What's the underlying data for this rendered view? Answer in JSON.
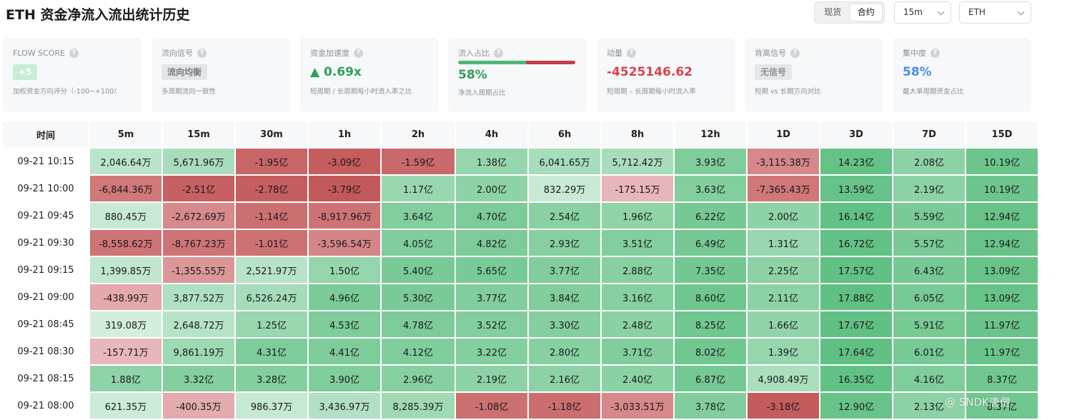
{
  "header": {
    "title": "ETH 资金净流入流出统计历史",
    "mode_options": [
      "现货",
      "合约"
    ],
    "mode_selected": "合约",
    "interval_value": "15m",
    "symbol_value": "ETH"
  },
  "cards": [
    {
      "label": "FLOW SCORE",
      "value": "+5",
      "value_style": "pill",
      "value_color": "#ffffff",
      "value_bg": "#c9ecd6",
      "desc": "加权资金方向评分（-100~+100）"
    },
    {
      "label": "流向信号",
      "value": "流向均衡",
      "value_style": "pill",
      "value_color": "#777b82",
      "value_bg": "#e3e5e8",
      "desc": "多周期流向一致性"
    },
    {
      "label": "资金加速度",
      "value": "▲ 0.69x",
      "value_style": "text",
      "value_color": "#2e9e5b",
      "desc": "短周期 / 长周期每小时流入率之比"
    },
    {
      "label": "流入占比",
      "value": "58%",
      "value_style": "text",
      "value_color": "#2e9e5b",
      "desc": "净流入周期占比",
      "ratio_in": 0.58
    },
    {
      "label": "动量",
      "value": "-4525146.62",
      "value_style": "text",
      "value_color": "#d9434c",
      "desc": "短周期 – 长周期每小时流入率"
    },
    {
      "label": "背离信号",
      "value": "无信号",
      "value_style": "pill",
      "value_color": "#8a8f98",
      "value_bg": "#e5e7ea",
      "desc": "短期 vs 长期方向对比"
    },
    {
      "label": "集中度",
      "value": "58%",
      "value_style": "text",
      "value_color": "#4a8fe0",
      "desc": "最大单周期资金占比"
    }
  ],
  "table": {
    "columns": [
      "时间",
      "5m",
      "15m",
      "30m",
      "1h",
      "2h",
      "4h",
      "6h",
      "8h",
      "12h",
      "1D",
      "3D",
      "7D",
      "15D"
    ],
    "rows": [
      {
        "time": "09-21 10:15",
        "cells": [
          "2,046.64万",
          "5,671.96万",
          "-1.95亿",
          "-3.09亿",
          "-1.59亿",
          "1.38亿",
          "6,041.65万",
          "5,712.42万",
          "3.93亿",
          "-3,115.38万",
          "14.23亿",
          "2.08亿",
          "10.19亿"
        ]
      },
      {
        "time": "09-21 10:00",
        "cells": [
          "-6,844.36万",
          "-2.51亿",
          "-2.78亿",
          "-3.79亿",
          "1.17亿",
          "2.00亿",
          "832.29万",
          "-175.15万",
          "3.63亿",
          "-7,365.43万",
          "13.59亿",
          "2.19亿",
          "10.19亿"
        ]
      },
      {
        "time": "09-21 09:45",
        "cells": [
          "880.45万",
          "-2,672.69万",
          "-1.14亿",
          "-8,917.96万",
          "3.64亿",
          "4.70亿",
          "2.54亿",
          "1.96亿",
          "6.22亿",
          "2.00亿",
          "16.14亿",
          "5.59亿",
          "12.94亿"
        ]
      },
      {
        "time": "09-21 09:30",
        "cells": [
          "-8,558.62万",
          "-8,767.23万",
          "-1.01亿",
          "-3,596.54万",
          "4.05亿",
          "4.82亿",
          "2.93亿",
          "3.51亿",
          "6.49亿",
          "1.31亿",
          "16.72亿",
          "5.57亿",
          "12.94亿"
        ]
      },
      {
        "time": "09-21 09:15",
        "cells": [
          "1,399.85万",
          "-1,355.55万",
          "2,521.97万",
          "1.50亿",
          "5.40亿",
          "5.65亿",
          "3.77亿",
          "2.88亿",
          "7.35亿",
          "2.25亿",
          "17.57亿",
          "6.43亿",
          "13.09亿"
        ]
      },
      {
        "time": "09-21 09:00",
        "cells": [
          "-438.99万",
          "3,877.52万",
          "6,526.24万",
          "4.96亿",
          "5.30亿",
          "3.77亿",
          "3.84亿",
          "3.16亿",
          "8.60亿",
          "2.11亿",
          "17.88亿",
          "6.05亿",
          "13.09亿"
        ]
      },
      {
        "time": "09-21 08:45",
        "cells": [
          "319.08万",
          "2,648.72万",
          "1.25亿",
          "4.53亿",
          "4.78亿",
          "3.52亿",
          "3.30亿",
          "2.48亿",
          "8.25亿",
          "1.66亿",
          "17.67亿",
          "5.91亿",
          "11.97亿"
        ]
      },
      {
        "time": "09-21 08:30",
        "cells": [
          "-157.71万",
          "9,861.19万",
          "4.31亿",
          "4.41亿",
          "4.12亿",
          "3.22亿",
          "2.80亿",
          "3.71亿",
          "8.02亿",
          "1.39亿",
          "17.64亿",
          "6.01亿",
          "11.97亿"
        ]
      },
      {
        "time": "09-21 08:15",
        "cells": [
          "1.88亿",
          "3.32亿",
          "3.28亿",
          "3.90亿",
          "2.96亿",
          "2.19亿",
          "2.16亿",
          "2.40亿",
          "6.87亿",
          "4,908.49万",
          "16.35亿",
          "4.16亿",
          "8.37亿"
        ]
      },
      {
        "time": "09-21 08:00",
        "cells": [
          "621.35万",
          "-400.35万",
          "986.37万",
          "3,436.97万",
          "8,285.39万",
          "-1.08亿",
          "-1.18亿",
          "-3,033.51万",
          "3.78亿",
          "-3.18亿",
          "12.90亿",
          "2.13亿",
          "8.37亿"
        ]
      }
    ]
  },
  "watermark": "@ SNDK唐僧"
}
